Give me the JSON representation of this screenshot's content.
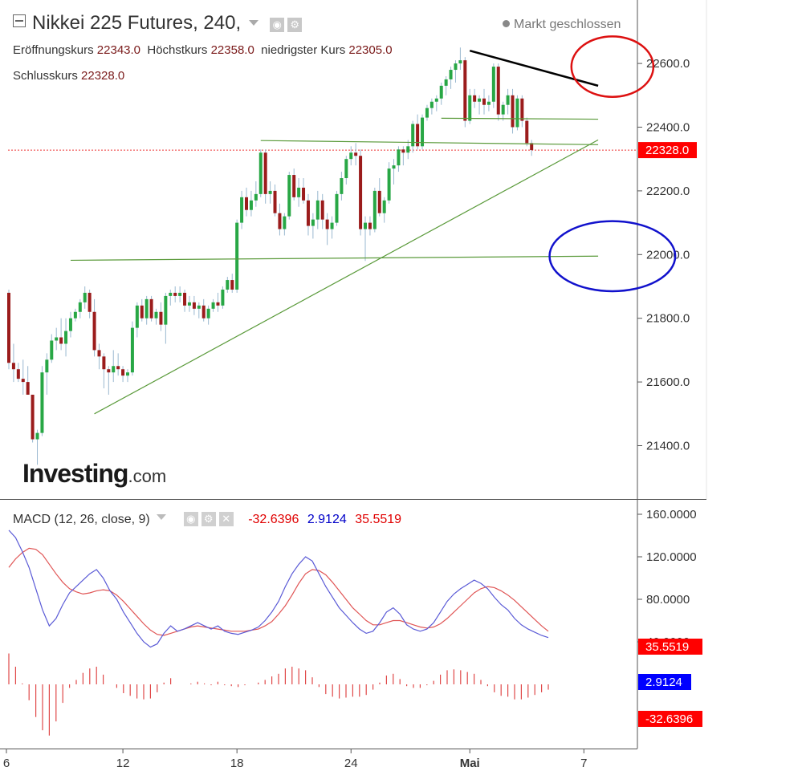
{
  "header": {
    "title": "Nikkei 225 Futures, 240,",
    "status": "Markt geschlossen",
    "ohlc": [
      {
        "label": "Eröffnungskurs",
        "value": "22343.0"
      },
      {
        "label": "Höchstkurs",
        "value": "22358.0"
      },
      {
        "label": "niedrigster Kurs",
        "value": "22305.0"
      },
      {
        "label": "Schlusskurs",
        "value": "22328.0"
      }
    ]
  },
  "logo": {
    "text": "Investing",
    "suffix": ".com"
  },
  "colors": {
    "up": "#28a745",
    "down": "#9b1c1c",
    "trendline": "#5a9a3a",
    "macd_line": "#5a5ad6",
    "signal_line": "#e05555",
    "histogram": "#e04848",
    "price_tag": "#ff0000",
    "macd_tag": "#0000ff"
  },
  "chart_data": [
    {
      "type": "candlestick",
      "title": "Nikkei 225 Futures, 240,",
      "ylim": [
        21260,
        22720
      ],
      "yticks": [
        "21400.0",
        "21600.0",
        "21800.0",
        "22000.0",
        "22200.0",
        "22400.0",
        "22600.0"
      ],
      "xticks": [
        {
          "label": "6",
          "index": 0
        },
        {
          "label": "12",
          "index": 24
        },
        {
          "label": "18",
          "index": 48
        },
        {
          "label": "24",
          "index": 72
        },
        {
          "label": "Mai",
          "index": 97
        },
        {
          "label": "7",
          "index": 121
        }
      ],
      "last_price": "22328.0",
      "ohlc": [
        [
          21880,
          21890,
          21640,
          21660
        ],
        [
          21660,
          21720,
          21600,
          21640
        ],
        [
          21640,
          21660,
          21600,
          21610
        ],
        [
          21610,
          21670,
          21560,
          21600
        ],
        [
          21600,
          21650,
          21560,
          21560
        ],
        [
          21560,
          21560,
          21410,
          21420
        ],
        [
          21420,
          21450,
          21340,
          21440
        ],
        [
          21440,
          21650,
          21430,
          21630
        ],
        [
          21630,
          21690,
          21560,
          21670
        ],
        [
          21670,
          21750,
          21660,
          21730
        ],
        [
          21730,
          21770,
          21700,
          21740
        ],
        [
          21740,
          21800,
          21700,
          21720
        ],
        [
          21720,
          21800,
          21680,
          21760
        ],
        [
          21760,
          21820,
          21740,
          21800
        ],
        [
          21800,
          21830,
          21790,
          21820
        ],
        [
          21820,
          21860,
          21800,
          21850
        ],
        [
          21850,
          21900,
          21830,
          21880
        ],
        [
          21880,
          21890,
          21800,
          21820
        ],
        [
          21820,
          21860,
          21680,
          21700
        ],
        [
          21700,
          21720,
          21640,
          21680
        ],
        [
          21680,
          21690,
          21580,
          21640
        ],
        [
          21640,
          21650,
          21560,
          21630
        ],
        [
          21630,
          21700,
          21600,
          21650
        ],
        [
          21650,
          21690,
          21620,
          21640
        ],
        [
          21640,
          21650,
          21600,
          21620
        ],
        [
          21620,
          21640,
          21600,
          21630
        ],
        [
          21630,
          21790,
          21620,
          21770
        ],
        [
          21770,
          21850,
          21740,
          21840
        ],
        [
          21840,
          21860,
          21790,
          21800
        ],
        [
          21800,
          21870,
          21780,
          21860
        ],
        [
          21860,
          21870,
          21790,
          21800
        ],
        [
          21800,
          21830,
          21780,
          21820
        ],
        [
          21820,
          21850,
          21760,
          21780
        ],
        [
          21780,
          21880,
          21720,
          21870
        ],
        [
          21870,
          21890,
          21840,
          21880
        ],
        [
          21880,
          21900,
          21850,
          21870
        ],
        [
          21870,
          21900,
          21850,
          21880
        ],
        [
          21880,
          21890,
          21820,
          21840
        ],
        [
          21840,
          21870,
          21820,
          21850
        ],
        [
          21850,
          21870,
          21810,
          21830
        ],
        [
          21830,
          21850,
          21800,
          21840
        ],
        [
          21840,
          21860,
          21790,
          21800
        ],
        [
          21800,
          21840,
          21780,
          21830
        ],
        [
          21830,
          21860,
          21820,
          21850
        ],
        [
          21850,
          21880,
          21820,
          21840
        ],
        [
          21840,
          21900,
          21830,
          21890
        ],
        [
          21890,
          21930,
          21880,
          21920
        ],
        [
          21920,
          21940,
          21880,
          21890
        ],
        [
          21890,
          22110,
          21880,
          22100
        ],
        [
          22100,
          22200,
          22080,
          22180
        ],
        [
          22180,
          22210,
          22120,
          22140
        ],
        [
          22140,
          22200,
          22120,
          22170
        ],
        [
          22170,
          22230,
          22150,
          22190
        ],
        [
          22190,
          22330,
          22180,
          22320
        ],
        [
          22320,
          22330,
          22160,
          22190
        ],
        [
          22190,
          22230,
          22160,
          22200
        ],
        [
          22200,
          22220,
          22120,
          22130
        ],
        [
          22130,
          22160,
          22060,
          22080
        ],
        [
          22080,
          22130,
          22060,
          22120
        ],
        [
          22120,
          22260,
          22110,
          22250
        ],
        [
          22250,
          22270,
          22170,
          22180
        ],
        [
          22180,
          22240,
          22150,
          22210
        ],
        [
          22210,
          22240,
          22160,
          22170
        ],
        [
          22170,
          22190,
          22060,
          22090
        ],
        [
          22090,
          22130,
          22050,
          22110
        ],
        [
          22110,
          22200,
          22080,
          22170
        ],
        [
          22170,
          22190,
          22080,
          22110
        ],
        [
          22110,
          22130,
          22030,
          22080
        ],
        [
          22080,
          22120,
          22050,
          22100
        ],
        [
          22100,
          22200,
          22090,
          22190
        ],
        [
          22190,
          22260,
          22170,
          22240
        ],
        [
          22240,
          22310,
          22220,
          22300
        ],
        [
          22300,
          22340,
          22280,
          22320
        ],
        [
          22320,
          22350,
          22280,
          22310
        ],
        [
          22310,
          22330,
          22060,
          22080
        ],
        [
          22080,
          22120,
          21980,
          22100
        ],
        [
          22100,
          22120,
          22060,
          22080
        ],
        [
          22080,
          22210,
          22070,
          22200
        ],
        [
          22200,
          22240,
          22120,
          22130
        ],
        [
          22130,
          22180,
          22100,
          22170
        ],
        [
          22170,
          22290,
          22160,
          22270
        ],
        [
          22270,
          22300,
          22220,
          22280
        ],
        [
          22280,
          22340,
          22260,
          22330
        ],
        [
          22330,
          22340,
          22280,
          22320
        ],
        [
          22320,
          22360,
          22300,
          22340
        ],
        [
          22340,
          22420,
          22320,
          22410
        ],
        [
          22410,
          22440,
          22330,
          22340
        ],
        [
          22340,
          22440,
          22330,
          22430
        ],
        [
          22430,
          22470,
          22420,
          22460
        ],
        [
          22460,
          22490,
          22440,
          22480
        ],
        [
          22480,
          22500,
          22450,
          22490
        ],
        [
          22490,
          22540,
          22470,
          22530
        ],
        [
          22530,
          22560,
          22500,
          22550
        ],
        [
          22550,
          22590,
          22520,
          22580
        ],
        [
          22580,
          22610,
          22540,
          22600
        ],
        [
          22600,
          22650,
          22580,
          22610
        ],
        [
          22610,
          22620,
          22400,
          22420
        ],
        [
          22420,
          22520,
          22410,
          22500
        ],
        [
          22500,
          22520,
          22460,
          22480
        ],
        [
          22480,
          22500,
          22440,
          22490
        ],
        [
          22490,
          22520,
          22440,
          22470
        ],
        [
          22470,
          22500,
          22450,
          22480
        ],
        [
          22480,
          22600,
          22460,
          22590
        ],
        [
          22590,
          22600,
          22420,
          22440
        ],
        [
          22440,
          22480,
          22420,
          22470
        ],
        [
          22470,
          22520,
          22440,
          22500
        ],
        [
          22500,
          22520,
          22380,
          22400
        ],
        [
          22400,
          22500,
          22390,
          22490
        ],
        [
          22490,
          22500,
          22400,
          22420
        ],
        [
          22420,
          22430,
          22340,
          22350
        ],
        [
          22350,
          22360,
          22310,
          22328
        ]
      ],
      "drawings": [
        {
          "kind": "trendline",
          "color": "black",
          "from": [
            97,
            22640
          ],
          "to": [
            124,
            22530
          ]
        },
        {
          "kind": "trendline",
          "color": "green",
          "from": [
            91,
            22428
          ],
          "to": [
            124,
            22425
          ]
        },
        {
          "kind": "trendline",
          "color": "green",
          "from": [
            53,
            22358
          ],
          "to": [
            124,
            22345
          ]
        },
        {
          "kind": "trendline",
          "color": "green",
          "from": [
            13,
            21982
          ],
          "to": [
            124,
            21995
          ]
        },
        {
          "kind": "trendline",
          "color": "green",
          "from": [
            18,
            21500
          ],
          "to": [
            124,
            22360
          ]
        },
        {
          "kind": "ellipse",
          "color": "red",
          "center": [
            127,
            22590
          ],
          "radii": [
            7.5,
            95
          ]
        },
        {
          "kind": "ellipse",
          "color": "blue",
          "center": [
            127,
            21995
          ],
          "radii": [
            11.5,
            110
          ]
        }
      ]
    },
    {
      "type": "macd",
      "title": "MACD (12, 26, close, 9)",
      "values_label": [
        "-32.6396",
        "2.9124",
        "35.5519"
      ],
      "ylim": [
        -55,
        175
      ],
      "yticks": [
        "160.0000",
        "120.0000",
        "80.0000",
        "40.0000"
      ],
      "tags": {
        "signal": "35.5519",
        "macd": "2.9124",
        "histogram": "-32.6396"
      },
      "macd": [
        145,
        138,
        125,
        110,
        90,
        70,
        55,
        62,
        75,
        86,
        92,
        98,
        104,
        108,
        100,
        88,
        80,
        68,
        58,
        48,
        40,
        35,
        38,
        48,
        55,
        50,
        52,
        55,
        58,
        55,
        52,
        55,
        50,
        48,
        47,
        49,
        51,
        54,
        60,
        68,
        78,
        92,
        104,
        113,
        120,
        116,
        104,
        92,
        82,
        72,
        65,
        58,
        52,
        48,
        50,
        58,
        68,
        72,
        66,
        56,
        52,
        50,
        52,
        58,
        68,
        78,
        85,
        90,
        94,
        98,
        95,
        90,
        82,
        75,
        70,
        62,
        56,
        52,
        49,
        46,
        44
      ],
      "signal": [
        110,
        118,
        124,
        128,
        127,
        122,
        113,
        104,
        96,
        90,
        87,
        85,
        86,
        88,
        89,
        88,
        84,
        78,
        71,
        64,
        57,
        51,
        47,
        46,
        48,
        50,
        52,
        54,
        55,
        54,
        53,
        52,
        51,
        50,
        50,
        50,
        51,
        52,
        55,
        59,
        66,
        74,
        84,
        95,
        104,
        108,
        107,
        103,
        96,
        88,
        80,
        72,
        66,
        60,
        56,
        56,
        58,
        60,
        60,
        58,
        56,
        54,
        53,
        54,
        57,
        62,
        68,
        74,
        80,
        86,
        90,
        92,
        91,
        88,
        84,
        79,
        73,
        67,
        61,
        55,
        50
      ],
      "histogram": [
        35,
        20,
        1,
        -18,
        -37,
        -52,
        -58,
        -42,
        -21,
        -4,
        5,
        13,
        18,
        20,
        11,
        0,
        -4,
        -10,
        -13,
        -16,
        -17,
        -16,
        -9,
        2,
        7,
        0,
        0,
        1,
        3,
        1,
        -1,
        3,
        -1,
        -2,
        -3,
        -1,
        0,
        2,
        5,
        9,
        12,
        18,
        20,
        18,
        16,
        8,
        -3,
        -11,
        -14,
        -16,
        -15,
        -14,
        -14,
        -12,
        -6,
        2,
        10,
        12,
        6,
        -2,
        -4,
        -4,
        -1,
        4,
        11,
        16,
        17,
        16,
        14,
        12,
        5,
        -2,
        -9,
        -13,
        -14,
        -17,
        -17,
        -15,
        -12,
        -9,
        -6
      ]
    }
  ]
}
